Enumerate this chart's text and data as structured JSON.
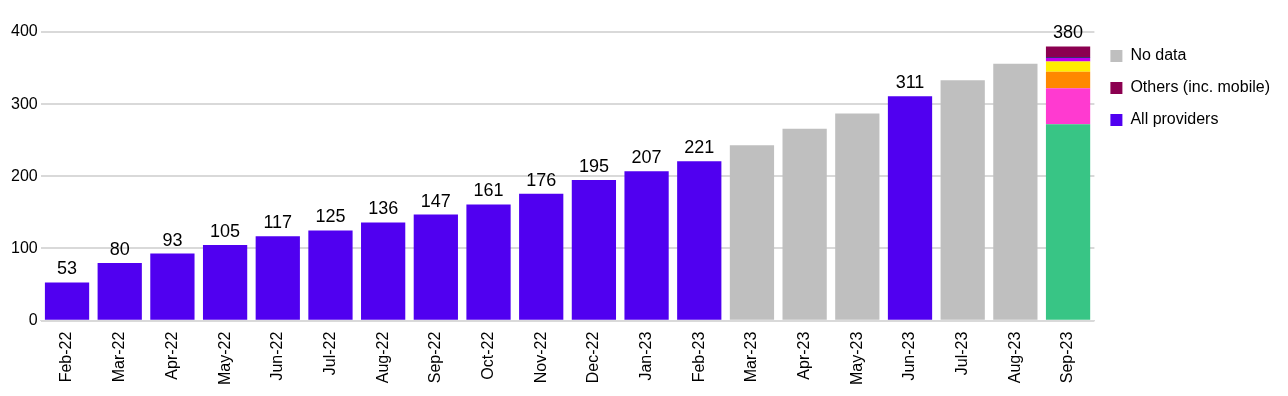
{
  "chart_data": {
    "type": "bar",
    "stacked": true,
    "grid": "y",
    "legend": "right",
    "categories": [
      "Feb-22",
      "Mar-22",
      "Apr-22",
      "May-22",
      "Jun-22",
      "Jul-22",
      "Aug-22",
      "Sep-22",
      "Oct-22",
      "Nov-22",
      "Dec-22",
      "Jan-23",
      "Feb-23",
      "Mar-23",
      "Apr-23",
      "May-23",
      "Jun-23",
      "Jul-23",
      "Aug-23",
      "Sep-23"
    ],
    "ylim": [
      0,
      400
    ],
    "yticks": [
      0,
      100,
      200,
      300,
      400
    ],
    "series": [
      {
        "name": "All providers",
        "color": "#5000f0",
        "values": [
          53,
          80,
          93,
          105,
          117,
          125,
          136,
          147,
          161,
          176,
          195,
          207,
          221,
          null,
          null,
          null,
          311,
          null,
          null,
          null
        ],
        "value_labels": [
          "53",
          "80",
          "93",
          "105",
          "117",
          "125",
          "136",
          "147",
          "161",
          "176",
          "195",
          "207",
          "221",
          null,
          null,
          null,
          "311",
          null,
          null,
          null
        ]
      },
      {
        "color": "#38c585",
        "values": [
          null,
          null,
          null,
          null,
          null,
          null,
          null,
          null,
          null,
          null,
          null,
          null,
          null,
          null,
          null,
          null,
          null,
          null,
          null,
          272
        ]
      },
      {
        "color": "#ff3ad0",
        "values": [
          null,
          null,
          null,
          null,
          null,
          null,
          null,
          null,
          null,
          null,
          null,
          null,
          null,
          null,
          null,
          null,
          null,
          null,
          null,
          50
        ]
      },
      {
        "color": "#ff8800",
        "values": [
          null,
          null,
          null,
          null,
          null,
          null,
          null,
          null,
          null,
          null,
          null,
          null,
          null,
          null,
          null,
          null,
          null,
          null,
          null,
          23
        ]
      },
      {
        "color": "#ffee00",
        "values": [
          null,
          null,
          null,
          null,
          null,
          null,
          null,
          null,
          null,
          null,
          null,
          null,
          null,
          null,
          null,
          null,
          null,
          null,
          null,
          14
        ]
      },
      {
        "color": "#c000f0",
        "values": [
          null,
          null,
          null,
          null,
          null,
          null,
          null,
          null,
          null,
          null,
          null,
          null,
          null,
          null,
          null,
          null,
          null,
          null,
          null,
          5
        ]
      },
      {
        "color": "#000050",
        "values": [
          null,
          null,
          null,
          null,
          null,
          null,
          null,
          null,
          null,
          null,
          null,
          null,
          null,
          null,
          null,
          null,
          null,
          null,
          null,
          1
        ]
      },
      {
        "name": "Others (inc. mobile)",
        "color": "#8b0050",
        "values": [
          null,
          null,
          null,
          null,
          null,
          null,
          null,
          null,
          null,
          null,
          null,
          null,
          null,
          null,
          null,
          null,
          null,
          null,
          null,
          15
        ]
      },
      {
        "name": "No data",
        "color": "#bfbfbf",
        "values": [
          null,
          null,
          null,
          null,
          null,
          null,
          null,
          null,
          null,
          null,
          null,
          null,
          null,
          243,
          266,
          287,
          null,
          333,
          356,
          null
        ]
      }
    ],
    "totals": [
      null,
      null,
      null,
      null,
      null,
      null,
      null,
      null,
      null,
      null,
      null,
      null,
      null,
      null,
      null,
      null,
      null,
      null,
      null,
      "380"
    ]
  }
}
